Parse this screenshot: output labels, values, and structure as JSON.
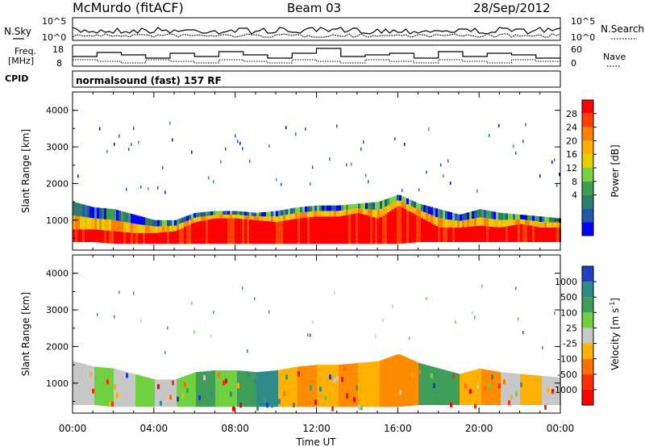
{
  "header": {
    "station": "McMurdo (fitACF)",
    "beam": "Beam 03",
    "date": "28/Sep/2012",
    "nsky_label": "N.Sky",
    "nsky_ticks": [
      "10^5",
      "10^0"
    ],
    "nsearch_label": "N.Search",
    "nsearch_ticks": [
      "10^5",
      "10^0"
    ],
    "freq_label_1": "Freq.",
    "freq_label_2": "[MHz]",
    "freq_ticks": [
      "18",
      "8"
    ],
    "nave_label": "Nave",
    "nave_ticks": [
      "60",
      "0"
    ],
    "cpid_label": "CPID",
    "cpid_text": "normalsound (fast) 157 RF"
  },
  "chart_data": [
    {
      "type": "heatmap",
      "name": "power",
      "ylabel": "Slant Range [km]",
      "yticks": [
        "4000",
        "3000",
        "2000",
        "1000"
      ],
      "ylim": [
        180,
        4500
      ],
      "xlabel": "Time UT",
      "xticks": [
        "00:00",
        "04:00",
        "08:00",
        "12:00",
        "16:00",
        "20:00",
        "00:00"
      ],
      "xlim_hours": [
        0,
        24
      ],
      "colorbar_label": "Power [dB]",
      "colorbar_ticks": [
        "28",
        "24",
        "20",
        "16",
        "12",
        "8",
        "4"
      ],
      "colorbar_colors": [
        "#ff0000",
        "#ff4000",
        "#ff8000",
        "#ffb000",
        "#e8d000",
        "#7ad040",
        "#3aa050",
        "#2e7d6a",
        "#1e58a8",
        "#0000ff"
      ],
      "profile_hours": [
        0,
        1,
        2,
        3,
        4,
        5,
        6,
        7,
        8,
        9,
        10,
        11,
        12,
        13,
        14,
        15,
        16,
        17,
        18,
        19,
        20,
        21,
        22,
        23,
        24
      ],
      "profile_top_km": [
        1500,
        1350,
        1300,
        1150,
        1000,
        1000,
        1200,
        1250,
        1250,
        1200,
        1250,
        1350,
        1400,
        1400,
        1450,
        1500,
        1700,
        1450,
        1300,
        1150,
        1300,
        1200,
        1150,
        1100,
        1050
      ],
      "profile_core_km": [
        750,
        750,
        700,
        650,
        650,
        700,
        950,
        1050,
        1050,
        1000,
        950,
        1050,
        1100,
        1100,
        1200,
        1050,
        1400,
        1100,
        800,
        800,
        850,
        800,
        900,
        800,
        800
      ],
      "profile_bottom_km": [
        400,
        400,
        350,
        350,
        350,
        350,
        350,
        350,
        350,
        350,
        350,
        350,
        350,
        350,
        350,
        350,
        350,
        400,
        400,
        400,
        400,
        400,
        400,
        400,
        400
      ]
    },
    {
      "type": "heatmap",
      "name": "velocity",
      "ylabel": "Slant Range [km]",
      "yticks": [
        "4000",
        "3000",
        "2000",
        "1000"
      ],
      "ylim": [
        180,
        4500
      ],
      "xlabel": "Time UT",
      "xticks": [
        "00:00",
        "04:00",
        "08:00",
        "12:00",
        "16:00",
        "20:00",
        "00:00"
      ],
      "xlim_hours": [
        0,
        24
      ],
      "colorbar_label": "Velocity [m s",
      "colorbar_sup": "-1",
      "colorbar_label_end": "]",
      "colorbar_ticks": [
        "1000",
        "500",
        "100",
        "25",
        "-25",
        "-100",
        "-500",
        "-1000"
      ],
      "colorbar_colors": [
        "#2040c0",
        "#2e8b8a",
        "#3f9f5a",
        "#6fd040",
        "#c8c8c8",
        "#ffb000",
        "#ff7000",
        "#ff3000",
        "#ff0000"
      ],
      "segments": [
        {
          "from": 0,
          "to": 1,
          "color": "#c8c8c8"
        },
        {
          "from": 1,
          "to": 2,
          "color": "#6fd040"
        },
        {
          "from": 2,
          "to": 3,
          "color": "#c8c8c8"
        },
        {
          "from": 3,
          "to": 4,
          "color": "#6fd040"
        },
        {
          "from": 4,
          "to": 5,
          "color": "#c8c8c8"
        },
        {
          "from": 5,
          "to": 6,
          "color": "#6fd040"
        },
        {
          "from": 6,
          "to": 7,
          "color": "#3f9f5a"
        },
        {
          "from": 7,
          "to": 8,
          "color": "#6fd040"
        },
        {
          "from": 8,
          "to": 9,
          "color": "#3f9f5a"
        },
        {
          "from": 9,
          "to": 10,
          "color": "#2e8b8a"
        },
        {
          "from": 10,
          "to": 11,
          "color": "#ffb000"
        },
        {
          "from": 11,
          "to": 12,
          "color": "#ff8c00"
        },
        {
          "from": 12,
          "to": 13,
          "color": "#ffb000"
        },
        {
          "from": 13,
          "to": 14,
          "color": "#ff8c00"
        },
        {
          "from": 14,
          "to": 15,
          "color": "#ffb000"
        },
        {
          "from": 15,
          "to": 16,
          "color": "#ff8c00"
        },
        {
          "from": 16,
          "to": 17,
          "color": "#ff8c00"
        },
        {
          "from": 17,
          "to": 18,
          "color": "#3f9f5a"
        },
        {
          "from": 18,
          "to": 19,
          "color": "#3f9f5a"
        },
        {
          "from": 19,
          "to": 20,
          "color": "#ffb000"
        },
        {
          "from": 20,
          "to": 21,
          "color": "#ff8c00"
        },
        {
          "from": 21,
          "to": 22,
          "color": "#c8c8c8"
        },
        {
          "from": 22,
          "to": 23,
          "color": "#ffb000"
        },
        {
          "from": 23,
          "to": 24,
          "color": "#c8c8c8"
        }
      ]
    }
  ]
}
